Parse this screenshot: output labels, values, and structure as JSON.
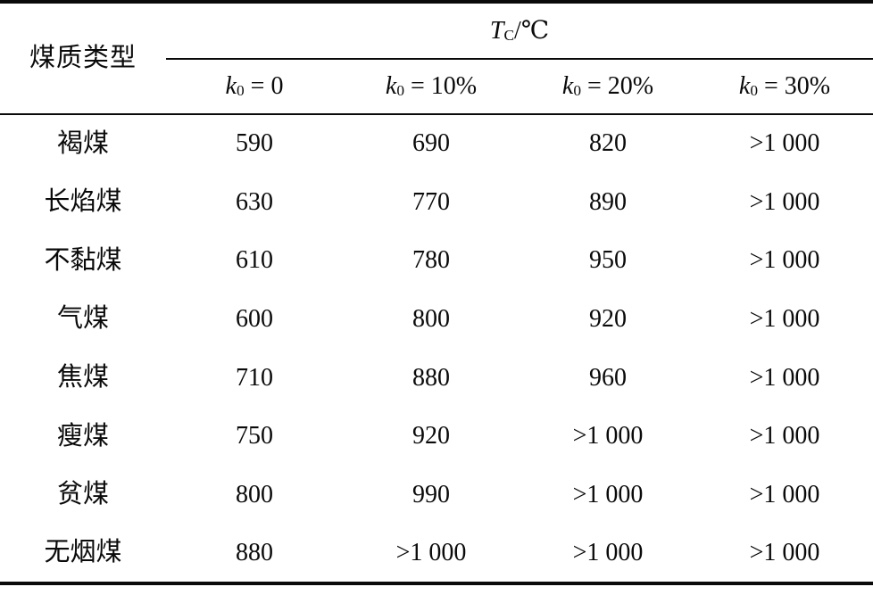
{
  "table": {
    "row_header_label": "煤质类型",
    "temp_header": {
      "symbol": "T",
      "sub": "C",
      "unit": "/℃"
    },
    "sub_columns": [
      {
        "symbol": "k",
        "sub": "0",
        "rest": " = 0"
      },
      {
        "symbol": "k",
        "sub": "0",
        "rest": " = 10%"
      },
      {
        "symbol": "k",
        "sub": "0",
        "rest": " = 20%"
      },
      {
        "symbol": "k",
        "sub": "0",
        "rest": " = 30%"
      }
    ],
    "rows": [
      {
        "type": "褐煤",
        "values": [
          "590",
          "690",
          "820",
          ">1 000"
        ]
      },
      {
        "type": "长焰煤",
        "values": [
          "630",
          "770",
          "890",
          ">1 000"
        ]
      },
      {
        "type": "不黏煤",
        "values": [
          "610",
          "780",
          "950",
          ">1 000"
        ]
      },
      {
        "type": "气煤",
        "values": [
          "600",
          "800",
          "920",
          ">1 000"
        ]
      },
      {
        "type": "焦煤",
        "values": [
          "710",
          "880",
          "960",
          ">1 000"
        ]
      },
      {
        "type": "瘦煤",
        "values": [
          "750",
          "920",
          ">1 000",
          ">1 000"
        ]
      },
      {
        "type": "贫煤",
        "values": [
          "800",
          "990",
          ">1 000",
          ">1 000"
        ]
      },
      {
        "type": "无烟煤",
        "values": [
          "880",
          ">1 000",
          ">1 000",
          ">1 000"
        ]
      }
    ]
  }
}
